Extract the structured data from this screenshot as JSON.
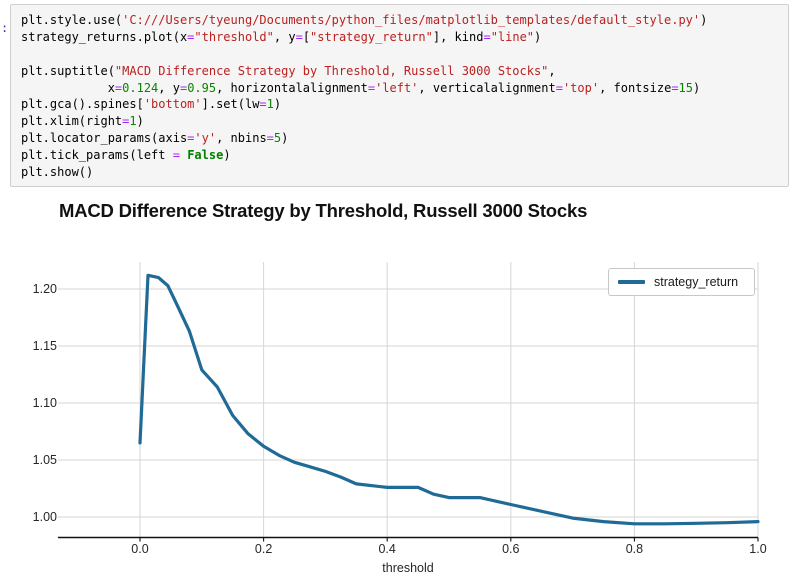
{
  "notebook": {
    "prompt_fragment": ":",
    "code": {
      "lines": [
        [
          {
            "c": "n",
            "t": "plt.style.use("
          },
          {
            "c": "s",
            "t": "'C:///Users/tyeung/Documents/python_files/matplotlib_templates/default_style.py'"
          },
          {
            "c": "n",
            "t": ")"
          }
        ],
        [
          {
            "c": "n",
            "t": "strategy_returns.plot(x"
          },
          {
            "c": "o",
            "t": "="
          },
          {
            "c": "s",
            "t": "\"threshold\""
          },
          {
            "c": "n",
            "t": ", y"
          },
          {
            "c": "o",
            "t": "="
          },
          {
            "c": "n",
            "t": "["
          },
          {
            "c": "s",
            "t": "\"strategy_return\""
          },
          {
            "c": "n",
            "t": "], kind"
          },
          {
            "c": "o",
            "t": "="
          },
          {
            "c": "s",
            "t": "\"line\""
          },
          {
            "c": "n",
            "t": ")"
          }
        ],
        [],
        [
          {
            "c": "n",
            "t": "plt.suptitle("
          },
          {
            "c": "s",
            "t": "\"MACD Difference Strategy by Threshold, Russell 3000 Stocks\""
          },
          {
            "c": "n",
            "t": ","
          }
        ],
        [
          {
            "c": "n",
            "t": "            x"
          },
          {
            "c": "o",
            "t": "="
          },
          {
            "c": "d",
            "t": "0.124"
          },
          {
            "c": "n",
            "t": ", y"
          },
          {
            "c": "o",
            "t": "="
          },
          {
            "c": "d",
            "t": "0.95"
          },
          {
            "c": "n",
            "t": ", horizontalalignment"
          },
          {
            "c": "o",
            "t": "="
          },
          {
            "c": "s",
            "t": "'left'"
          },
          {
            "c": "n",
            "t": ", verticalalignment"
          },
          {
            "c": "o",
            "t": "="
          },
          {
            "c": "s",
            "t": "'top'"
          },
          {
            "c": "n",
            "t": ", fontsize"
          },
          {
            "c": "o",
            "t": "="
          },
          {
            "c": "d",
            "t": "15"
          },
          {
            "c": "n",
            "t": ")"
          }
        ],
        [
          {
            "c": "n",
            "t": "plt.gca().spines["
          },
          {
            "c": "s",
            "t": "'bottom'"
          },
          {
            "c": "n",
            "t": "].set(lw"
          },
          {
            "c": "o",
            "t": "="
          },
          {
            "c": "d",
            "t": "1"
          },
          {
            "c": "n",
            "t": ")"
          }
        ],
        [
          {
            "c": "n",
            "t": "plt.xlim(right"
          },
          {
            "c": "o",
            "t": "="
          },
          {
            "c": "d",
            "t": "1"
          },
          {
            "c": "n",
            "t": ")"
          }
        ],
        [
          {
            "c": "n",
            "t": "plt.locator_params(axis"
          },
          {
            "c": "o",
            "t": "="
          },
          {
            "c": "s",
            "t": "'y'"
          },
          {
            "c": "n",
            "t": ", nbins"
          },
          {
            "c": "o",
            "t": "="
          },
          {
            "c": "d",
            "t": "5"
          },
          {
            "c": "n",
            "t": ")"
          }
        ],
        [
          {
            "c": "n",
            "t": "plt.tick_params(left "
          },
          {
            "c": "o",
            "t": "="
          },
          {
            "c": "n",
            "t": " "
          },
          {
            "c": "k",
            "t": "False"
          },
          {
            "c": "n",
            "t": ")"
          }
        ],
        [
          {
            "c": "n",
            "t": "plt.show()"
          }
        ]
      ]
    }
  },
  "chart_data": {
    "type": "line",
    "title": "MACD Difference Strategy by Threshold, Russell 3000 Stocks",
    "xlabel": "threshold",
    "ylabel": "",
    "grid": true,
    "legend_position": "upper right",
    "xlim": [
      -0.133,
      1.0
    ],
    "ylim": [
      0.982,
      1.224
    ],
    "xticks": [
      0.0,
      0.2,
      0.4,
      0.6,
      0.8,
      1.0
    ],
    "xtick_labels": [
      "0.0",
      "0.2",
      "0.4",
      "0.6",
      "0.8",
      "1.0"
    ],
    "yticks": [
      1.0,
      1.05,
      1.1,
      1.15,
      1.2
    ],
    "ytick_labels": [
      "1.00",
      "1.05",
      "1.10",
      "1.15",
      "1.20"
    ],
    "colors": {
      "line": "#1f6a96",
      "grid": "#d6d6d6",
      "spine": "#111111"
    },
    "series": [
      {
        "name": "strategy_return",
        "color": "#1f6a96",
        "x": [
          0.0,
          0.013,
          0.03,
          0.045,
          0.06,
          0.08,
          0.1,
          0.125,
          0.15,
          0.175,
          0.2,
          0.225,
          0.25,
          0.275,
          0.3,
          0.325,
          0.35,
          0.4,
          0.45,
          0.475,
          0.5,
          0.55,
          0.6,
          0.65,
          0.7,
          0.75,
          0.8,
          0.85,
          0.9,
          0.95,
          1.0
        ],
        "y": [
          1.065,
          1.212,
          1.21,
          1.203,
          1.186,
          1.163,
          1.129,
          1.114,
          1.089,
          1.073,
          1.062,
          1.054,
          1.048,
          1.044,
          1.04,
          1.035,
          1.029,
          1.026,
          1.026,
          1.02,
          1.017,
          1.017,
          1.011,
          1.005,
          0.999,
          0.996,
          0.994,
          0.994,
          0.9945,
          0.995,
          0.996
        ]
      }
    ]
  }
}
